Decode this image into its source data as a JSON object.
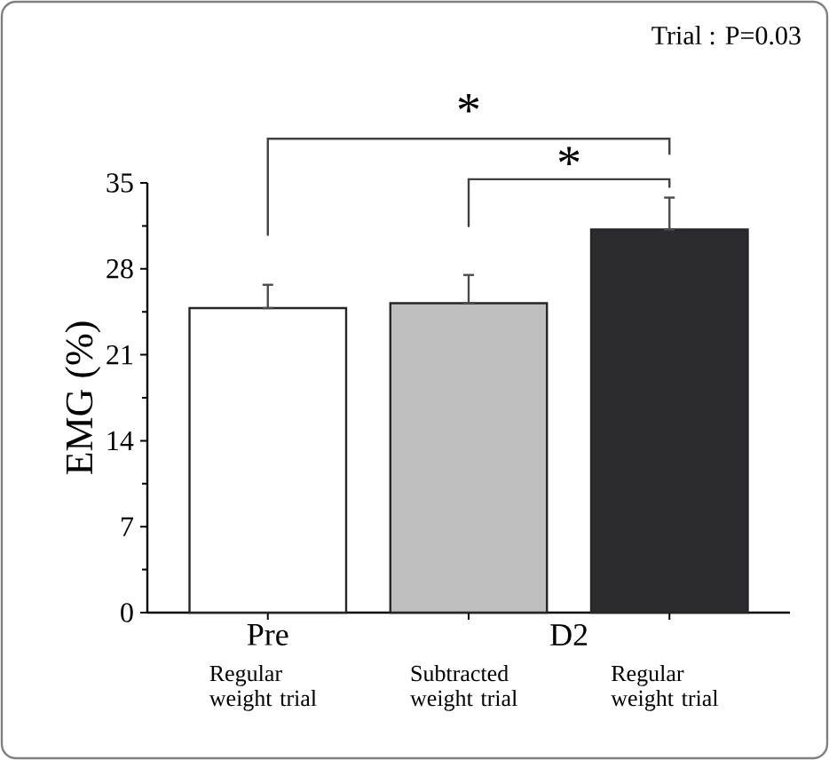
{
  "chart_data": {
    "type": "bar",
    "ylabel": "EMG (%)",
    "categories": [
      "Regular weight trial",
      "Subtracted weight trial",
      "Regular weight trial"
    ],
    "values": [
      24.8,
      25.2,
      31.2
    ],
    "errors": [
      [
        24.8,
        26.7
      ],
      [
        25.2,
        27.5
      ],
      [
        31.2,
        33.8
      ]
    ],
    "colors": [
      "#ffffff",
      "#bebebe",
      "#2b2b30"
    ],
    "ylim": [
      0,
      35
    ],
    "yticks": [
      0,
      7,
      14,
      21,
      28,
      35
    ],
    "annotations": [
      "Trial : P=0.03",
      "*",
      "*",
      "Pre",
      "D2"
    ]
  }
}
